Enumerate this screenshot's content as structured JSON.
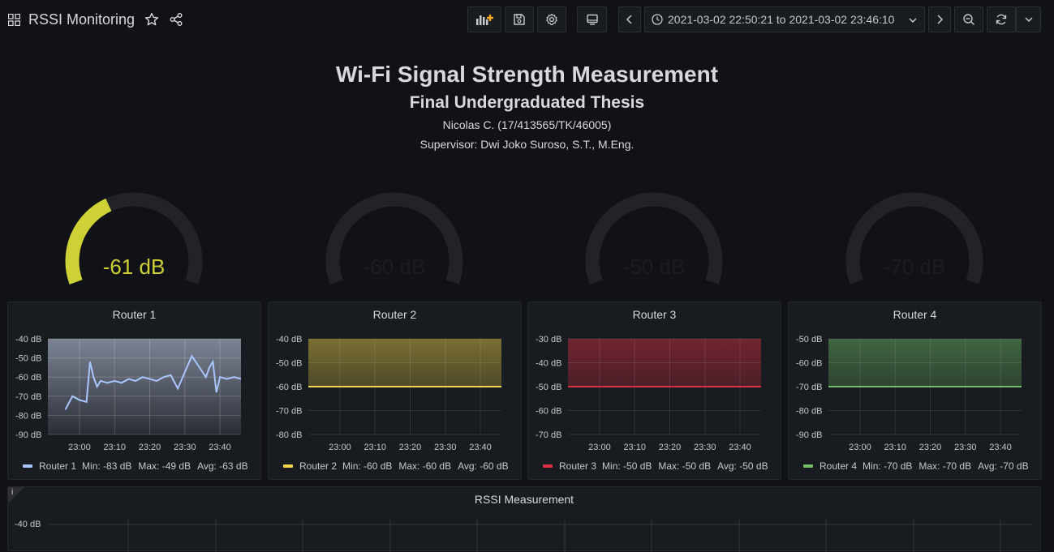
{
  "topbar": {
    "title": "RSSI Monitoring",
    "time_range": "2021-03-02 22:50:21 to 2021-03-02 23:46:10"
  },
  "header": {
    "title": "Wi-Fi Signal Strength Measurement",
    "subtitle": "Final Undergraduated Thesis",
    "author": "Nicolas C. (17/413565/TK/46005)",
    "supervisor": "Supervisor: Dwi Joko Suroso, S.T., M.Eng."
  },
  "gauges": [
    {
      "value": -61,
      "label": "-61 dB",
      "color": "#cdd135",
      "fill": 0.39
    },
    {
      "value": -60,
      "label": "-60 dB",
      "color": "#1c1d21",
      "fill": 0
    },
    {
      "value": -50,
      "label": "-50 dB",
      "color": "#1c1d21",
      "fill": 0
    },
    {
      "value": -70,
      "label": "-70 dB",
      "color": "#1c1d21",
      "fill": 0
    }
  ],
  "panels": [
    {
      "title": "Router 1",
      "color": "#a9c6ff",
      "ticks": [
        "-40 dB",
        "-50 dB",
        "-60 dB",
        "-70 dB",
        "-80 dB",
        "-90 dB"
      ],
      "xticks": [
        "23:00",
        "23:10",
        "23:20",
        "23:30",
        "23:40"
      ],
      "legend": {
        "name": "Router 1",
        "min": "Min: -83 dB",
        "max": "Max: -49 dB",
        "avg": "Avg: -63 dB"
      }
    },
    {
      "title": "Router 2",
      "color": "#f2d64a",
      "ticks": [
        "-40 dB",
        "-50 dB",
        "-60 dB",
        "-70 dB",
        "-80 dB"
      ],
      "xticks": [
        "23:00",
        "23:10",
        "23:20",
        "23:30",
        "23:40"
      ],
      "legend": {
        "name": "Router 2",
        "min": "Min: -60 dB",
        "max": "Max: -60 dB",
        "avg": "Avg: -60 dB"
      }
    },
    {
      "title": "Router 3",
      "color": "#e02f44",
      "ticks": [
        "-30 dB",
        "-40 dB",
        "-50 dB",
        "-60 dB",
        "-70 dB"
      ],
      "xticks": [
        "23:00",
        "23:10",
        "23:20",
        "23:30",
        "23:40"
      ],
      "legend": {
        "name": "Router 3",
        "min": "Min: -50 dB",
        "max": "Max: -50 dB",
        "avg": "Avg: -50 dB"
      }
    },
    {
      "title": "Router 4",
      "color": "#73bf69",
      "ticks": [
        "-50 dB",
        "-60 dB",
        "-70 dB",
        "-80 dB",
        "-90 dB"
      ],
      "xticks": [
        "23:00",
        "23:10",
        "23:20",
        "23:30",
        "23:40"
      ],
      "legend": {
        "name": "Router 4",
        "min": "Min: -70 dB",
        "max": "Max: -70 dB",
        "avg": "Avg: -70 dB"
      }
    }
  ],
  "bottom": {
    "title": "RSSI Measurement",
    "info": "i",
    "ytick": "-40 dB"
  },
  "chart_data": [
    {
      "type": "line",
      "title": "Router 1",
      "ylim": [
        -90,
        -40
      ],
      "x": [
        "22:56",
        "22:58",
        "23:00",
        "23:02",
        "23:03",
        "23:04",
        "23:05",
        "23:06",
        "23:08",
        "23:10",
        "23:12",
        "23:14",
        "23:16",
        "23:18",
        "23:20",
        "23:22",
        "23:24",
        "23:26",
        "23:28",
        "23:32",
        "23:36",
        "23:37",
        "23:38",
        "23:39",
        "23:40",
        "23:42",
        "23:44",
        "23:46"
      ],
      "series": [
        {
          "name": "Router 1",
          "values": [
            -77,
            -70,
            -72,
            -73,
            -52,
            -60,
            -65,
            -62,
            -63,
            -62,
            -63,
            -61,
            -62,
            -60,
            -61,
            -62,
            -60,
            -59,
            -66,
            -49,
            -60,
            -55,
            -52,
            -68,
            -60,
            -61,
            -60,
            -61
          ]
        }
      ]
    },
    {
      "type": "line",
      "title": "Router 2",
      "ylim": [
        -80,
        -40
      ],
      "x": [
        "22:51",
        "23:46"
      ],
      "series": [
        {
          "name": "Router 2",
          "values": [
            -60,
            -60
          ]
        }
      ]
    },
    {
      "type": "line",
      "title": "Router 3",
      "ylim": [
        -70,
        -30
      ],
      "x": [
        "22:51",
        "23:46"
      ],
      "series": [
        {
          "name": "Router 3",
          "values": [
            -50,
            -50
          ]
        }
      ]
    },
    {
      "type": "line",
      "title": "Router 4",
      "ylim": [
        -90,
        -50
      ],
      "x": [
        "22:51",
        "23:46"
      ],
      "series": [
        {
          "name": "Router 4",
          "values": [
            -70,
            -70
          ]
        }
      ]
    }
  ]
}
